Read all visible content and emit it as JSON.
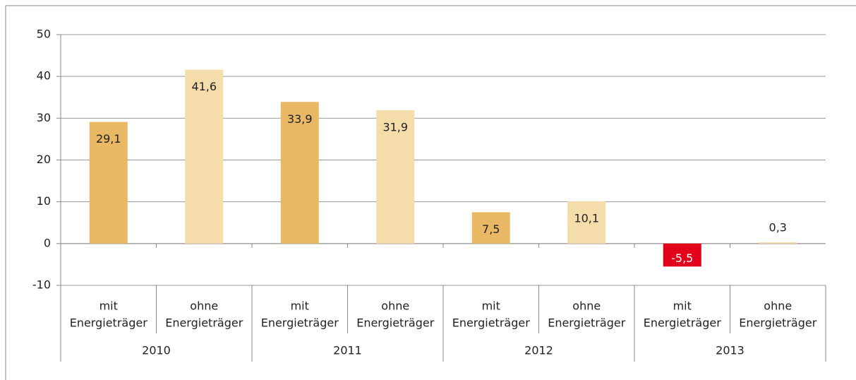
{
  "chart_data": {
    "type": "bar",
    "categories": [
      [
        "mit",
        "Energieträger"
      ],
      [
        "ohne",
        "Energieträger"
      ],
      [
        "mit",
        "Energieträger"
      ],
      [
        "ohne",
        "Energieträger"
      ],
      [
        "mit",
        "Energieträger"
      ],
      [
        "ohne",
        "Energieträger"
      ],
      [
        "mit",
        "Energieträger"
      ],
      [
        "ohne",
        "Energieträger"
      ]
    ],
    "groups": [
      "2010",
      "2011",
      "2012",
      "2013"
    ],
    "values": [
      29.1,
      41.6,
      33.9,
      31.9,
      7.5,
      10.1,
      -5.5,
      0.3
    ],
    "value_labels": [
      "29,1",
      "41,6",
      "33,9",
      "31,9",
      "7,5",
      "10,1",
      "-5,5",
      "0,3"
    ],
    "colors": [
      "#e8b864",
      "#f5dcab",
      "#e8b864",
      "#f5dcab",
      "#e8b864",
      "#f5dcab",
      "#e2001a",
      "#f5dcab"
    ],
    "ylim": [
      -10,
      50
    ],
    "yticks": [
      -10,
      0,
      10,
      20,
      30,
      40,
      50
    ],
    "grid": true
  }
}
